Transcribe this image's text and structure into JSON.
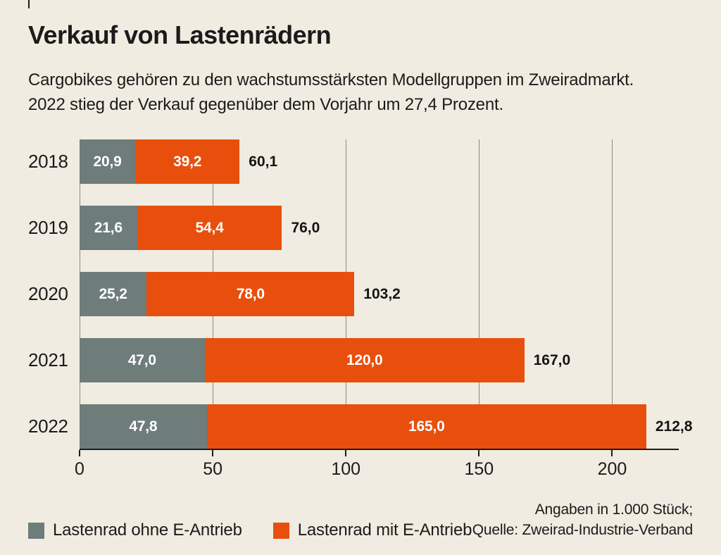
{
  "title": "Verkauf von Lastenrädern",
  "subtitle": [
    "Cargobikes gehören zu den wachstumsstärksten Modellgruppen im Zweiradmarkt.",
    "2022 stieg der Verkauf gegenüber dem Vorjahr um 27,4 Prozent."
  ],
  "chart_data": {
    "type": "bar",
    "orientation": "horizontal",
    "stacked": true,
    "unit": "1.000 Stück",
    "categories": [
      "2018",
      "2019",
      "2020",
      "2021",
      "2022"
    ],
    "series": [
      {
        "name": "Lastenrad ohne E-Antrieb",
        "color": "#6e7c7a",
        "values": [
          20.9,
          21.6,
          25.2,
          47.0,
          47.8
        ],
        "labels": [
          "20,9",
          "21,6",
          "25,2",
          "47,0",
          "47,8"
        ]
      },
      {
        "name": "Lastenrad mit E-Antrieb",
        "color": "#e84f0d",
        "values": [
          39.2,
          54.4,
          78.0,
          120.0,
          165.0
        ],
        "labels": [
          "39,2",
          "54,4",
          "78,0",
          "120,0",
          "165,0"
        ]
      }
    ],
    "totals": [
      60.1,
      76.0,
      103.2,
      167.0,
      212.8
    ],
    "total_labels": [
      "60,1",
      "76,0",
      "103,2",
      "167,0",
      "212,8"
    ],
    "x_ticks": [
      0,
      50,
      100,
      150,
      200
    ],
    "x_tick_labels": [
      "0",
      "50",
      "100",
      "150",
      "200"
    ],
    "xlim": [
      0,
      225
    ],
    "grid": true,
    "legend_position": "bottom-left"
  },
  "source": [
    "Angaben in 1.000 Stück;",
    "Quelle: Zweirad-Industrie-Verband"
  ]
}
